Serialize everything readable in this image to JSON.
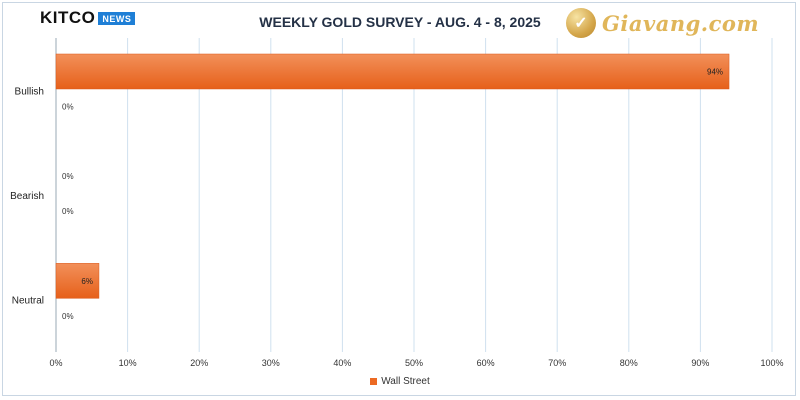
{
  "logo": {
    "name": "KITCO",
    "badge": "NEWS"
  },
  "watermark": {
    "text": "Giavang.com"
  },
  "chart_data": {
    "type": "bar",
    "orientation": "horizontal",
    "title": "WEEKLY GOLD SURVEY - AUG. 4 - 8, 2025",
    "categories": [
      "Bullish",
      "Bearish",
      "Neutral"
    ],
    "series": [
      {
        "name": "Wall Street",
        "values": [
          94,
          0,
          6
        ],
        "labels": [
          "94%",
          "0%",
          "6%"
        ],
        "color": "#ec6a23"
      },
      {
        "values": [
          0,
          0,
          0
        ],
        "labels": [
          "0%",
          "0%",
          "0%"
        ]
      }
    ],
    "xlim": [
      0,
      100
    ],
    "xticks": [
      "0%",
      "10%",
      "20%",
      "30%",
      "40%",
      "50%",
      "60%",
      "70%",
      "80%",
      "90%",
      "100%"
    ],
    "grid": true,
    "legend": "bottom"
  }
}
